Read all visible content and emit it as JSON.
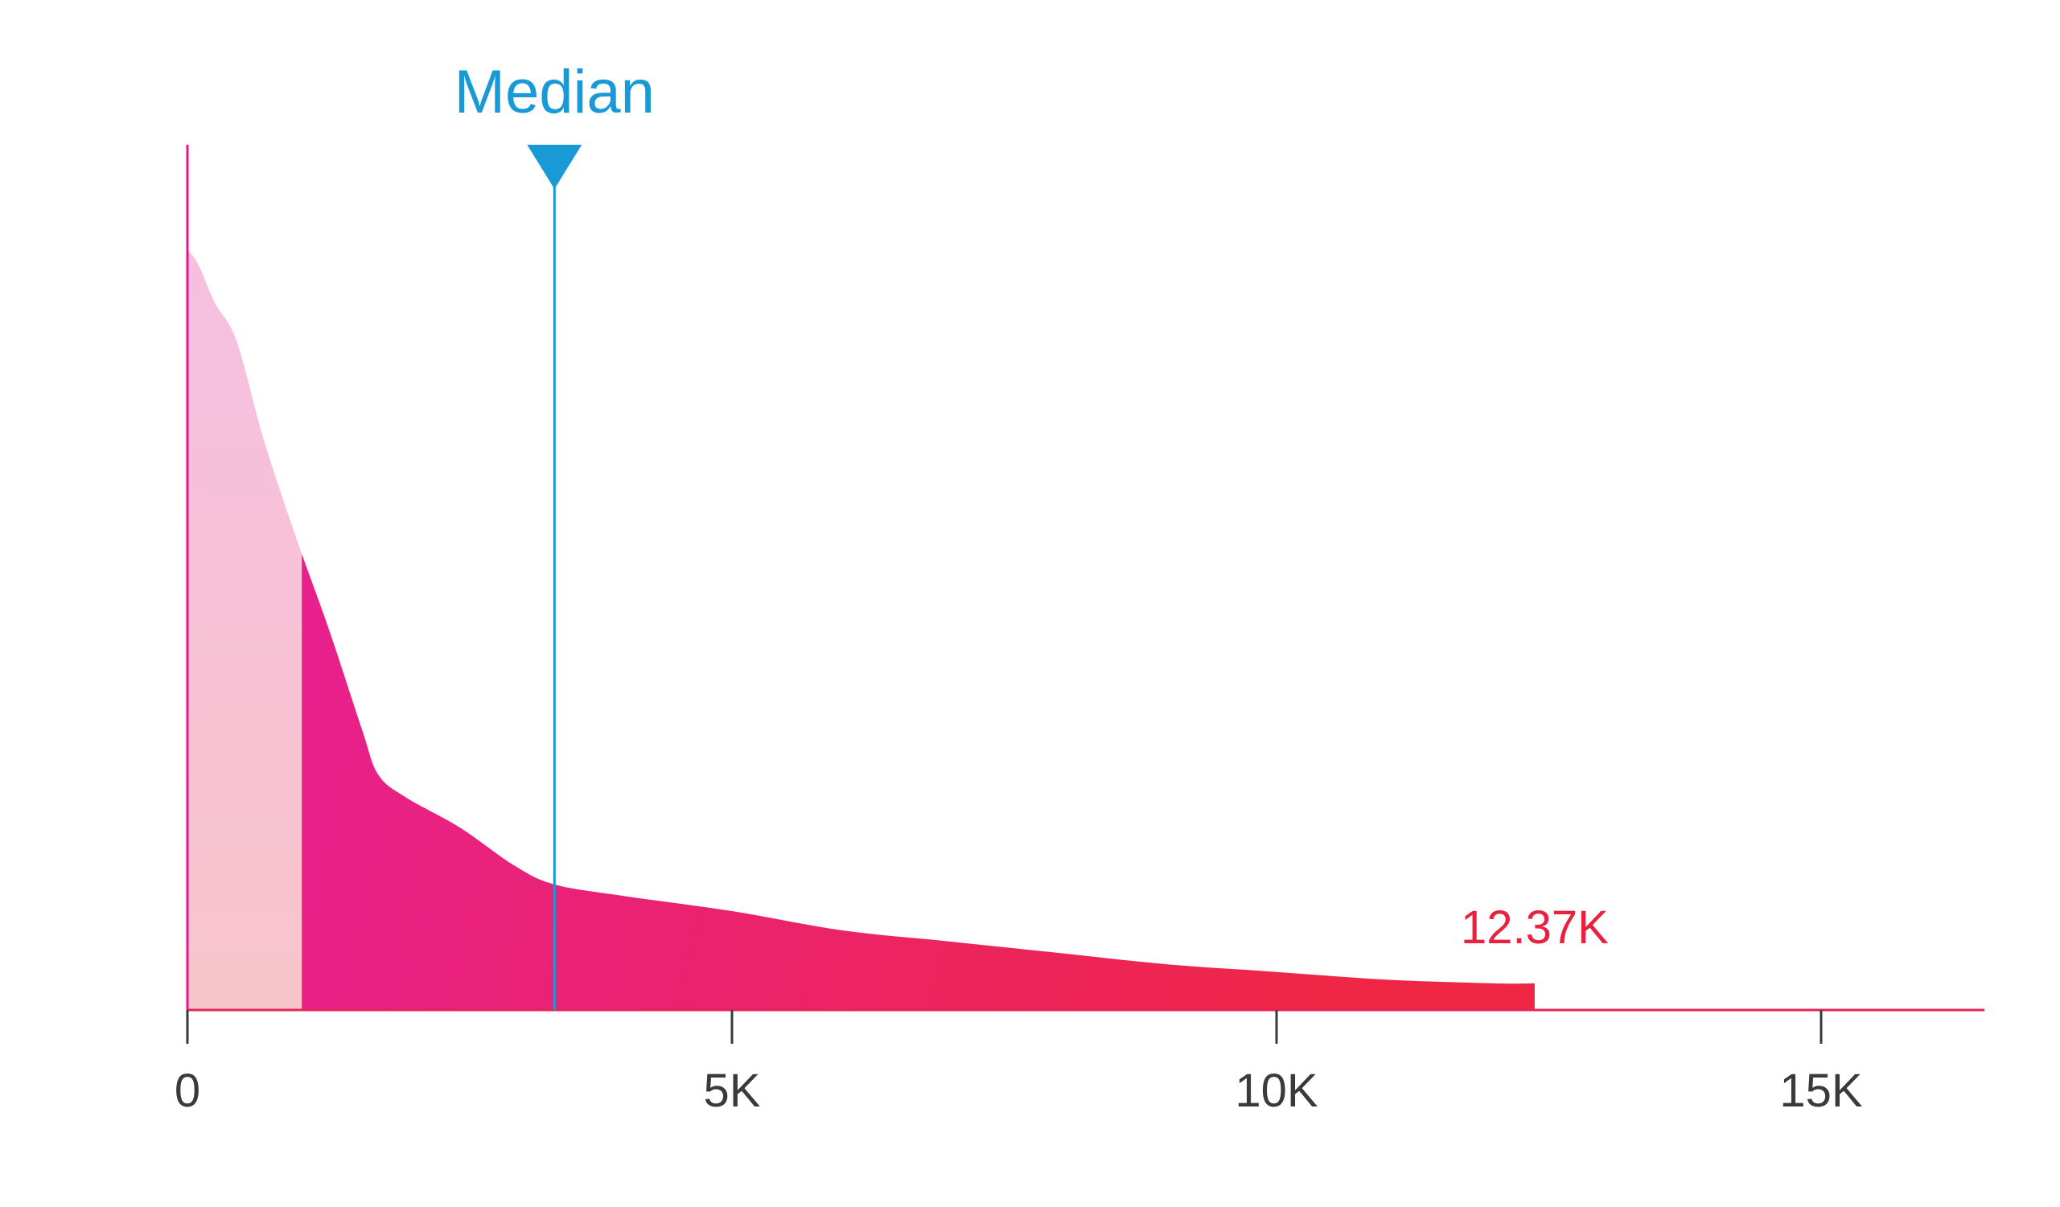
{
  "chart_data": {
    "type": "area",
    "title": "",
    "xlabel": "",
    "ylabel": "",
    "xlim": [
      0,
      16500
    ],
    "ylim": [
      0,
      1
    ],
    "grid": false,
    "x_ticks": [
      {
        "value": 0,
        "label": "0"
      },
      {
        "value": 5000,
        "label": "5K"
      },
      {
        "value": 10000,
        "label": "10K"
      },
      {
        "value": 15000,
        "label": "15K"
      }
    ],
    "series": [
      {
        "x": [
          0,
          100,
          250,
          450,
          700,
          1000,
          1300,
          1600,
          1750,
          2000,
          2500,
          3000,
          3370,
          4000,
          5000,
          6000,
          7000,
          8000,
          9000,
          10000,
          11000,
          12000,
          12370
        ],
        "y": [
          1.0,
          0.98,
          0.93,
          0.88,
          0.75,
          0.62,
          0.5,
          0.37,
          0.31,
          0.28,
          0.24,
          0.19,
          0.165,
          0.15,
          0.13,
          0.105,
          0.09,
          0.075,
          0.06,
          0.05,
          0.04,
          0.035,
          0.035
        ]
      }
    ],
    "shaded_region": {
      "x_start": 0,
      "x_end": 1050
    },
    "median": {
      "label": "Median",
      "value": 3370
    },
    "end_marker": {
      "label": "12.37K",
      "value": 12370
    },
    "colors": {
      "light_fill_top": "#f7bfe0",
      "light_fill_bottom": "#f8c4cb",
      "fill_left": "#e61f9a",
      "fill_right": "#ef2643",
      "left_axis": "#e6148d",
      "baseline": "#e6245a",
      "median": "#199ad6",
      "end_label": "#e8213e",
      "tick": "#3a3a3a"
    }
  }
}
